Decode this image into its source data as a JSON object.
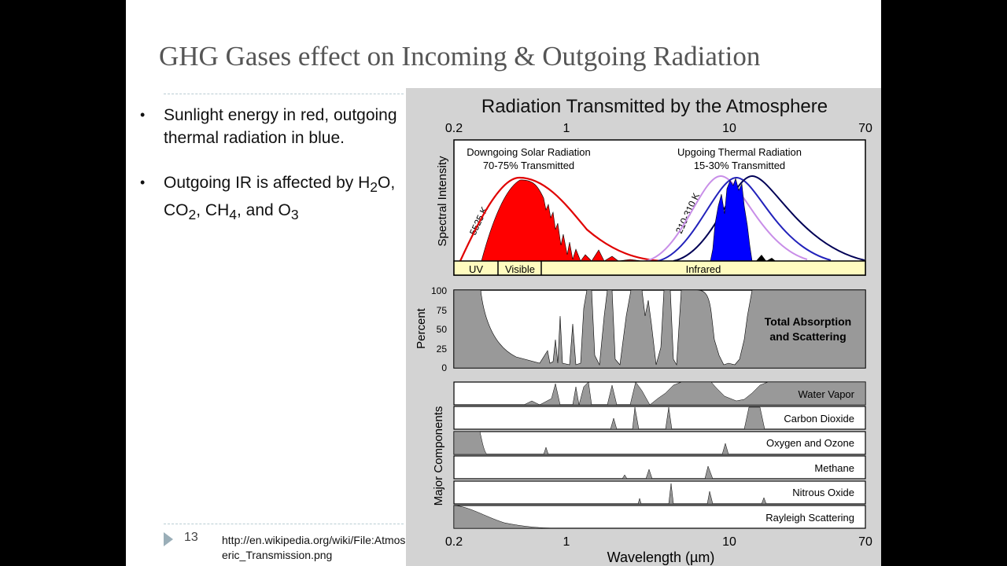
{
  "slide": {
    "title": "GHG Gases effect on Incoming & Outgoing Radiation",
    "bullets": [
      {
        "text": "Sunlight energy in red, outgoing thermal radiation in blue."
      },
      {
        "pre": "Outgoing IR is affected by H",
        "s1": "2",
        "m1": "O, CO",
        "s2": "2",
        "m2": ", CH",
        "s3": "4",
        "m3": ", and O",
        "s4": "3"
      }
    ],
    "page_number": "13",
    "source_url": "http://en.wikipedia.org/wiki/File:Atmospheric_Transmission.png"
  },
  "figure": {
    "title": "Radiation Transmitted by the Atmosphere",
    "x_ticks": [
      "0.2",
      "1",
      "10",
      "70"
    ],
    "x_label": "Wavelength (µm)",
    "spectral_ylabel": "Spectral Intensity",
    "solar_label_1": "Downgoing Solar Radiation",
    "solar_label_2": "70-75% Transmitted",
    "thermal_label_1": "Upgoing Thermal Radiation",
    "thermal_label_2": "15-30% Transmitted",
    "solar_temp": "5525 K",
    "thermal_temp": "210-310 K",
    "bands": [
      "UV",
      "Visible",
      "Infrared"
    ],
    "absorption_ylabel": "Percent",
    "absorption_ticks": [
      "100",
      "75",
      "50",
      "25",
      "0"
    ],
    "absorption_label_1": "Total Absorption",
    "absorption_label_2": "and Scattering",
    "components_ylabel": "Major Components",
    "components": [
      "Water Vapor",
      "Carbon Dioxide",
      "Oxygen and Ozone",
      "Methane",
      "Nitrous Oxide",
      "Rayleigh Scattering"
    ],
    "colors": {
      "solar": "#ff0000",
      "thermal": "#0000ff",
      "band_fill": "#fffbbf",
      "absorption_fill": "#999999"
    }
  }
}
